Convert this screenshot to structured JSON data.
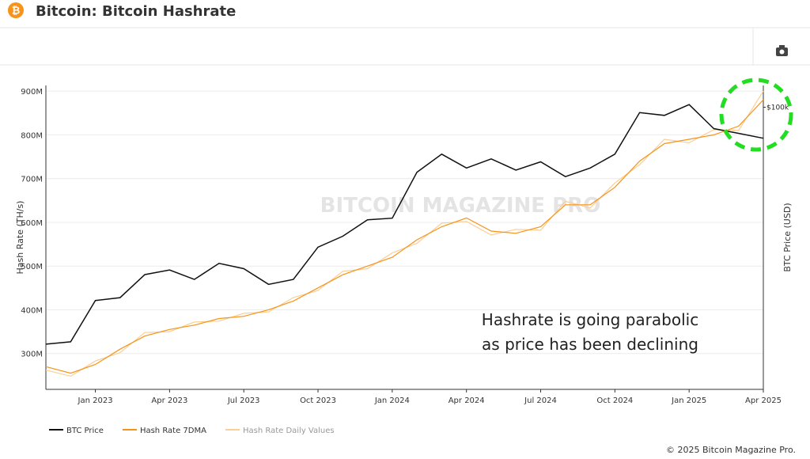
{
  "chart_data": {
    "type": "line",
    "title": "Bitcoin: Bitcoin Hashrate",
    "y_label": "Hash Rate (TH/s)",
    "y2_label": "BTC Price (USD)",
    "watermark": "BITCOIN MAGAZINE PRO",
    "annotation": [
      "Hashrate is going parabolic",
      "as price has been declining"
    ],
    "footer": "© 2025 Bitcoin Magazine Pro.",
    "x": [
      "Nov 2022",
      "Dec 2022",
      "Jan 2023",
      "Feb 2023",
      "Mar 2023",
      "Apr 2023",
      "May 2023",
      "Jun 2023",
      "Jul 2023",
      "Aug 2023",
      "Sep 2023",
      "Oct 2023",
      "Nov 2023",
      "Dec 2023",
      "Jan 2024",
      "Feb 2024",
      "Mar 2024",
      "Apr 2024",
      "May 2024",
      "Jun 2024",
      "Jul 2024",
      "Aug 2024",
      "Sep 2024",
      "Oct 2024",
      "Nov 2024",
      "Dec 2024",
      "Jan 2025",
      "Feb 2025",
      "Mar 2025",
      "Apr 2025"
    ],
    "xticks": [
      "Jan 2023",
      "Apr 2023",
      "Jul 2023",
      "Oct 2023",
      "Jan 2024",
      "Apr 2024",
      "Jul 2024",
      "Oct 2024",
      "Jan 2025",
      "Apr 2025"
    ],
    "ylim": [
      218000000,
      913000000
    ],
    "yticks": [
      {
        "value": 300000000,
        "label": "300M"
      },
      {
        "value": 400000000,
        "label": "400M"
      },
      {
        "value": 500000000,
        "label": "500M"
      },
      {
        "value": 600000000,
        "label": "600M"
      },
      {
        "value": 700000000,
        "label": "700M"
      },
      {
        "value": 800000000,
        "label": "800M"
      },
      {
        "value": 900000000,
        "label": "900M"
      }
    ],
    "y2lim": [
      11700,
      118000
    ],
    "y2log": true,
    "y2ticks": [
      {
        "value": 100000,
        "label": "$100k"
      }
    ],
    "grid": true,
    "series": [
      {
        "name": "BTC Price",
        "color": "#111111",
        "axis": "y2",
        "values": [
          16500,
          16800,
          23000,
          23500,
          28000,
          29000,
          27000,
          30500,
          29300,
          26000,
          27000,
          34500,
          37500,
          42500,
          43000,
          61000,
          70000,
          63000,
          67500,
          62000,
          66000,
          59000,
          63000,
          70000,
          96000,
          94000,
          102000,
          85000,
          82000,
          79000
        ]
      },
      {
        "name": "Hash Rate 7DMA",
        "color": "#f7931a",
        "values": [
          270000000,
          255000000,
          275000000,
          310000000,
          340000000,
          355000000,
          365000000,
          380000000,
          385000000,
          400000000,
          420000000,
          450000000,
          480000000,
          500000000,
          520000000,
          560000000,
          590000000,
          610000000,
          580000000,
          575000000,
          590000000,
          640000000,
          640000000,
          680000000,
          740000000,
          780000000,
          790000000,
          800000000,
          820000000,
          880000000
        ]
      },
      {
        "name": "Hash Rate Daily Values",
        "color": "#f9cf96",
        "values": [
          262000000,
          248000000,
          283000000,
          302000000,
          348000000,
          350000000,
          372000000,
          374000000,
          392000000,
          395000000,
          428000000,
          444000000,
          488000000,
          494000000,
          530000000,
          552000000,
          598000000,
          602000000,
          571000000,
          584000000,
          582000000,
          648000000,
          633000000,
          690000000,
          732000000,
          790000000,
          782000000,
          812000000,
          810000000,
          900000000
        ]
      }
    ]
  }
}
